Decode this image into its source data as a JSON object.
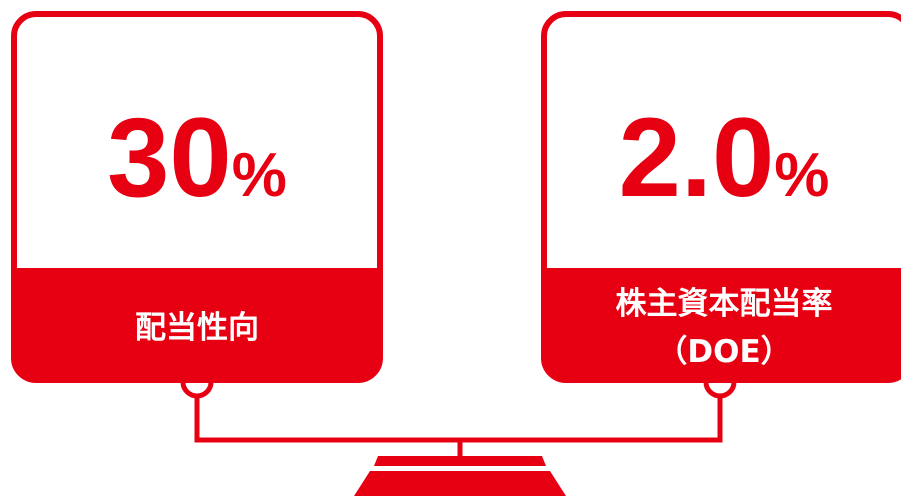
{
  "left": {
    "value": "30",
    "unit": "%",
    "label": "配当性向"
  },
  "right": {
    "value": "2.0",
    "unit": "%",
    "label_lines": [
      "株主資本配当率",
      "（DOE）"
    ]
  }
}
